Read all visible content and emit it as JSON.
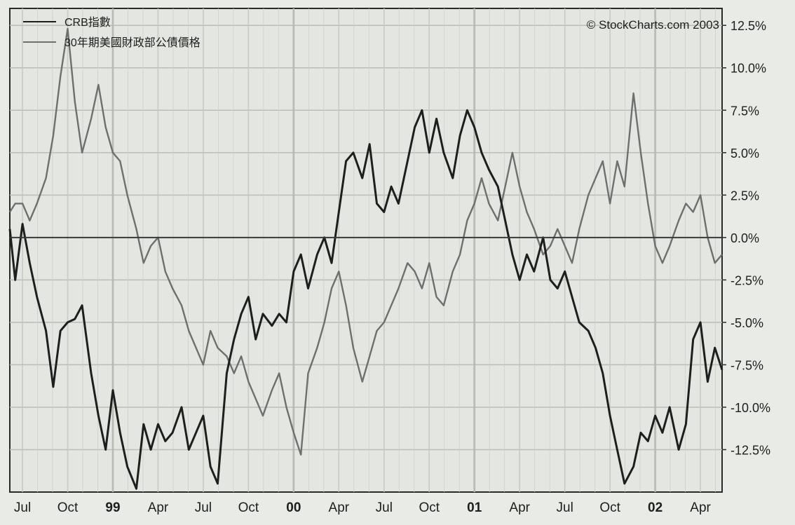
{
  "chart_data": {
    "type": "line",
    "title": "",
    "xlabel": "",
    "ylabel": "",
    "copyright": "© StockCharts.com 2003",
    "ylim": [
      -15,
      13.5
    ],
    "xlim": [
      1998.43,
      2002.37
    ],
    "grid": true,
    "legend_position": "top-left",
    "y_ticks": [
      {
        "value": 12.5,
        "label": "12.5%"
      },
      {
        "value": 10.0,
        "label": "10.0%"
      },
      {
        "value": 7.5,
        "label": "7.5%"
      },
      {
        "value": 5.0,
        "label": "5.0%"
      },
      {
        "value": 2.5,
        "label": "2.5%"
      },
      {
        "value": 0.0,
        "label": "0.0%"
      },
      {
        "value": -2.5,
        "label": "-2.5%"
      },
      {
        "value": -5.0,
        "label": "-5.0%"
      },
      {
        "value": -7.5,
        "label": "-7.5%"
      },
      {
        "value": -10.0,
        "label": "-10.0%"
      },
      {
        "value": -12.5,
        "label": "-12.5%"
      }
    ],
    "x_ticks": [
      {
        "value": 1998.5,
        "label": "Jul",
        "bold": false
      },
      {
        "value": 1998.75,
        "label": "Oct",
        "bold": false
      },
      {
        "value": 1999.0,
        "label": "99",
        "bold": true
      },
      {
        "value": 1999.25,
        "label": "Apr",
        "bold": false
      },
      {
        "value": 1999.5,
        "label": "Jul",
        "bold": false
      },
      {
        "value": 1999.75,
        "label": "Oct",
        "bold": false
      },
      {
        "value": 2000.0,
        "label": "00",
        "bold": true
      },
      {
        "value": 2000.25,
        "label": "Apr",
        "bold": false
      },
      {
        "value": 2000.5,
        "label": "Jul",
        "bold": false
      },
      {
        "value": 2000.75,
        "label": "Oct",
        "bold": false
      },
      {
        "value": 2001.0,
        "label": "01",
        "bold": true
      },
      {
        "value": 2001.25,
        "label": "Apr",
        "bold": false
      },
      {
        "value": 2001.5,
        "label": "Jul",
        "bold": false
      },
      {
        "value": 2001.75,
        "label": "Oct",
        "bold": false
      },
      {
        "value": 2002.0,
        "label": "02",
        "bold": true
      },
      {
        "value": 2002.25,
        "label": "Apr",
        "bold": false
      }
    ],
    "zero_line": 0,
    "series": [
      {
        "name": "CRB指數",
        "color": "#1e1e1e",
        "x": [
          1998.43,
          1998.46,
          1998.5,
          1998.54,
          1998.58,
          1998.63,
          1998.67,
          1998.71,
          1998.75,
          1998.79,
          1998.83,
          1998.88,
          1998.92,
          1998.96,
          1999.0,
          1999.04,
          1999.08,
          1999.13,
          1999.17,
          1999.21,
          1999.25,
          1999.29,
          1999.33,
          1999.38,
          1999.42,
          1999.46,
          1999.5,
          1999.54,
          1999.58,
          1999.63,
          1999.67,
          1999.71,
          1999.75,
          1999.79,
          1999.83,
          1999.88,
          1999.92,
          1999.96,
          2000.0,
          2000.04,
          2000.08,
          2000.13,
          2000.17,
          2000.21,
          2000.25,
          2000.29,
          2000.33,
          2000.38,
          2000.42,
          2000.46,
          2000.5,
          2000.54,
          2000.58,
          2000.63,
          2000.67,
          2000.71,
          2000.75,
          2000.79,
          2000.83,
          2000.88,
          2000.92,
          2000.96,
          2001.0,
          2001.04,
          2001.08,
          2001.13,
          2001.17,
          2001.21,
          2001.25,
          2001.29,
          2001.33,
          2001.38,
          2001.42,
          2001.46,
          2001.5,
          2001.54,
          2001.58,
          2001.63,
          2001.67,
          2001.71,
          2001.75,
          2001.79,
          2001.83,
          2001.88,
          2001.92,
          2001.96,
          2002.0,
          2002.04,
          2002.08,
          2002.13,
          2002.17,
          2002.21,
          2002.25,
          2002.29,
          2002.33,
          2002.37
        ],
        "values": [
          0.5,
          -2.5,
          0.8,
          -1.5,
          -3.5,
          -5.5,
          -8.8,
          -5.5,
          -5.0,
          -4.8,
          -4.0,
          -8.0,
          -10.5,
          -12.5,
          -9.0,
          -11.5,
          -13.5,
          -14.8,
          -11.0,
          -12.5,
          -11.0,
          -12.0,
          -11.5,
          -10.0,
          -12.5,
          -11.5,
          -10.5,
          -13.5,
          -14.5,
          -8.0,
          -6.0,
          -4.5,
          -3.5,
          -6.0,
          -4.5,
          -5.2,
          -4.5,
          -5.0,
          -2.0,
          -1.0,
          -3.0,
          -1.0,
          0.0,
          -1.5,
          1.5,
          4.5,
          5.0,
          3.5,
          5.5,
          2.0,
          1.5,
          3.0,
          2.0,
          4.5,
          6.5,
          7.5,
          5.0,
          7.0,
          5.0,
          3.5,
          6.0,
          7.5,
          6.5,
          5.0,
          4.0,
          3.0,
          1.0,
          -1.0,
          -2.5,
          -1.0,
          -2.0,
          0.0,
          -2.5,
          -3.0,
          -2.0,
          -3.5,
          -5.0,
          -5.5,
          -6.5,
          -8.0,
          -10.5,
          -12.5,
          -14.5,
          -13.5,
          -11.5,
          -12.0,
          -10.5,
          -11.5,
          -10.0,
          -12.5,
          -11.0,
          -6.0,
          -5.0,
          -8.5,
          -6.5,
          -7.8
        ]
      },
      {
        "name": "30年期美國財政部公債價格",
        "color": "#6f6f6f",
        "x": [
          1998.43,
          1998.46,
          1998.5,
          1998.54,
          1998.58,
          1998.63,
          1998.67,
          1998.71,
          1998.75,
          1998.79,
          1998.83,
          1998.88,
          1998.92,
          1998.96,
          1999.0,
          1999.04,
          1999.08,
          1999.13,
          1999.17,
          1999.21,
          1999.25,
          1999.29,
          1999.33,
          1999.38,
          1999.42,
          1999.46,
          1999.5,
          1999.54,
          1999.58,
          1999.63,
          1999.67,
          1999.71,
          1999.75,
          1999.79,
          1999.83,
          1999.88,
          1999.92,
          1999.96,
          2000.0,
          2000.04,
          2000.08,
          2000.13,
          2000.17,
          2000.21,
          2000.25,
          2000.29,
          2000.33,
          2000.38,
          2000.42,
          2000.46,
          2000.5,
          2000.54,
          2000.58,
          2000.63,
          2000.67,
          2000.71,
          2000.75,
          2000.79,
          2000.83,
          2000.88,
          2000.92,
          2000.96,
          2001.0,
          2001.04,
          2001.08,
          2001.13,
          2001.17,
          2001.21,
          2001.25,
          2001.29,
          2001.33,
          2001.38,
          2001.42,
          2001.46,
          2001.5,
          2001.54,
          2001.58,
          2001.63,
          2001.67,
          2001.71,
          2001.75,
          2001.79,
          2001.83,
          2001.88,
          2001.92,
          2001.96,
          2002.0,
          2002.04,
          2002.08,
          2002.13,
          2002.17,
          2002.21,
          2002.25,
          2002.29,
          2002.33,
          2002.37
        ],
        "values": [
          1.5,
          2.0,
          2.0,
          1.0,
          2.0,
          3.5,
          6.0,
          9.5,
          12.3,
          8.0,
          5.0,
          7.0,
          9.0,
          6.5,
          5.0,
          4.5,
          2.5,
          0.5,
          -1.5,
          -0.5,
          0.0,
          -2.0,
          -3.0,
          -4.0,
          -5.5,
          -6.5,
          -7.5,
          -5.5,
          -6.5,
          -7.0,
          -8.0,
          -7.0,
          -8.5,
          -9.5,
          -10.5,
          -9.0,
          -8.0,
          -10.0,
          -11.5,
          -12.8,
          -8.0,
          -6.5,
          -5.0,
          -3.0,
          -2.0,
          -4.0,
          -6.5,
          -8.5,
          -7.0,
          -5.5,
          -5.0,
          -4.0,
          -3.0,
          -1.5,
          -2.0,
          -3.0,
          -1.5,
          -3.5,
          -4.0,
          -2.0,
          -1.0,
          1.0,
          2.0,
          3.5,
          2.0,
          1.0,
          3.0,
          5.0,
          3.0,
          1.5,
          0.5,
          -1.0,
          -0.5,
          0.5,
          -0.5,
          -1.5,
          0.5,
          2.5,
          3.5,
          4.5,
          2.0,
          4.5,
          3.0,
          8.5,
          5.0,
          2.0,
          -0.5,
          -1.5,
          -0.5,
          1.0,
          2.0,
          1.5,
          2.5,
          0.0,
          -1.5,
          -1.0
        ]
      }
    ]
  }
}
